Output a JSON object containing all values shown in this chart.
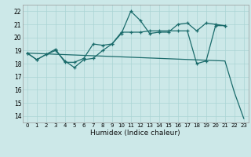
{
  "xlabel": "Humidex (Indice chaleur)",
  "bg_color": "#cce8e8",
  "grid_color": "#aad4d4",
  "line_color": "#1a6b6b",
  "xlim": [
    -0.5,
    23.5
  ],
  "ylim": [
    13.5,
    22.5
  ],
  "xticks": [
    0,
    1,
    2,
    3,
    4,
    5,
    6,
    7,
    8,
    9,
    10,
    11,
    12,
    13,
    14,
    15,
    16,
    17,
    18,
    19,
    20,
    21,
    22,
    23
  ],
  "yticks": [
    14,
    15,
    16,
    17,
    18,
    19,
    20,
    21,
    22
  ],
  "line1_x": [
    0,
    1,
    2,
    3,
    4,
    5,
    6,
    7,
    8,
    9,
    10,
    11,
    12,
    13,
    14,
    15,
    16,
    17,
    18,
    19,
    20,
    21
  ],
  "line1_y": [
    18.8,
    18.3,
    18.7,
    19.0,
    18.2,
    17.7,
    18.3,
    18.4,
    19.0,
    19.5,
    20.3,
    22.0,
    21.3,
    20.3,
    20.4,
    20.4,
    21.0,
    21.1,
    20.5,
    21.1,
    21.0,
    20.9
  ],
  "line2_x": [
    0,
    1,
    2,
    3,
    4,
    5,
    6,
    7,
    8,
    9,
    10,
    11,
    12,
    13,
    14,
    15,
    16,
    17,
    18,
    19,
    20,
    21
  ],
  "line2_y": [
    18.8,
    18.3,
    18.7,
    19.1,
    18.1,
    18.1,
    18.4,
    19.5,
    19.4,
    19.5,
    20.4,
    20.4,
    20.4,
    20.5,
    20.5,
    20.5,
    20.5,
    20.5,
    18.0,
    18.2,
    20.9,
    20.9
  ],
  "line3_x": [
    0,
    21,
    22,
    23
  ],
  "line3_y": [
    18.8,
    18.2,
    15.8,
    13.8
  ]
}
